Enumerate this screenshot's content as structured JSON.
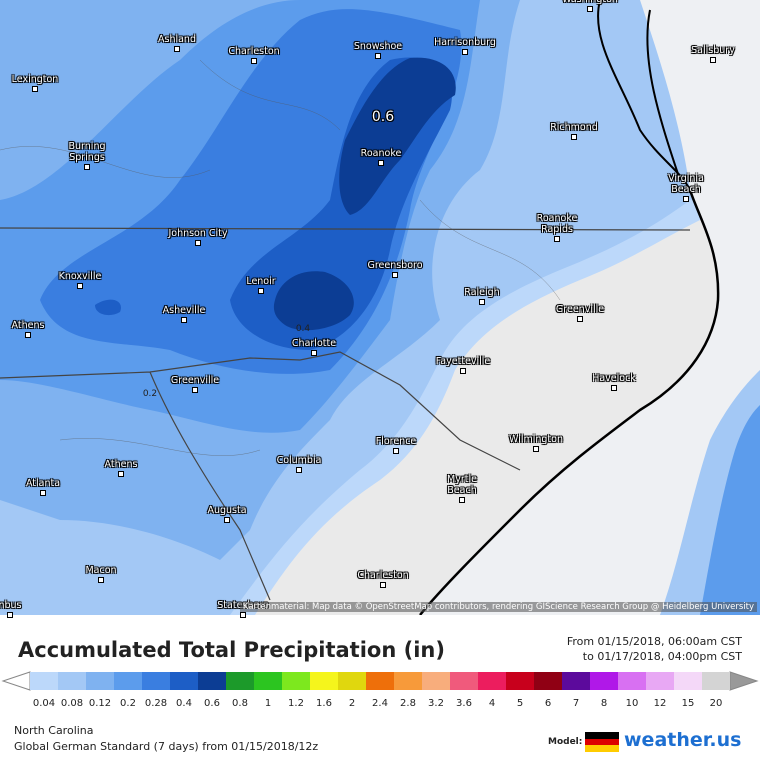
{
  "map": {
    "cities": [
      "Washington",
      "Ashland",
      "Charleston",
      "Snowshoe",
      "Harrisonburg",
      "Salisbury",
      "Lexington",
      "Richmond",
      "Burning Springs",
      "Roanoke",
      "Virginia Beach",
      "Johnson City",
      "Roanoke Rapids",
      "Greensboro",
      "Knoxville",
      "Lenoir",
      "Raleigh",
      "Asheville",
      "Greenville",
      "Athens",
      "Charlotte",
      "Fayetteville",
      "Greenville",
      "Havelock",
      "Wilmington",
      "Florence",
      "Athens",
      "Columbia",
      "Atlanta",
      "Myrtle Beach",
      "Augusta",
      "Macon",
      "Charleston",
      "Statesboro",
      "nbus"
    ],
    "contour_labels": [
      "0.6",
      "0.4",
      "0.2"
    ],
    "attribution": "Kartenmaterial: Map data © OpenStreetMap contributors, rendering GIScience Research Group @ Heidelberg University"
  },
  "footer": {
    "title": "Accumulated Total Precipitation (in)",
    "date_from": "From 01/15/2018, 06:00am CST",
    "date_to": "to 01/17/2018, 04:00pm CST",
    "region": "North Carolina",
    "model_run": "Global German Standard (7 days) from 01/15/2018/12z",
    "model_label": "Model:",
    "logo": "weather.us"
  },
  "legend": {
    "labels": [
      0.04,
      0.08,
      0.12,
      0.2,
      0.28,
      0.4,
      0.6,
      0.8,
      1,
      1.2,
      1.6,
      2,
      2.4,
      2.8,
      3.2,
      3.6,
      4,
      5,
      6,
      7,
      8,
      10,
      12,
      15,
      20
    ],
    "colors": [
      "#bcd8fa",
      "#a3c8f5",
      "#7fb2f0",
      "#5c9cec",
      "#3a7ee0",
      "#1d5ec6",
      "#0c3d94",
      "#1c9a2a",
      "#2cc520",
      "#7de81e",
      "#f5f51c",
      "#e0d70e",
      "#ee6f0a",
      "#f79a3a",
      "#f8ad7c",
      "#f05a7c",
      "#ec1d5e",
      "#c8001c",
      "#900014",
      "#5c0a9c",
      "#b018e8",
      "#d870f2",
      "#e8a8f4",
      "#f4d8f8",
      "#d4d4d4"
    ]
  }
}
